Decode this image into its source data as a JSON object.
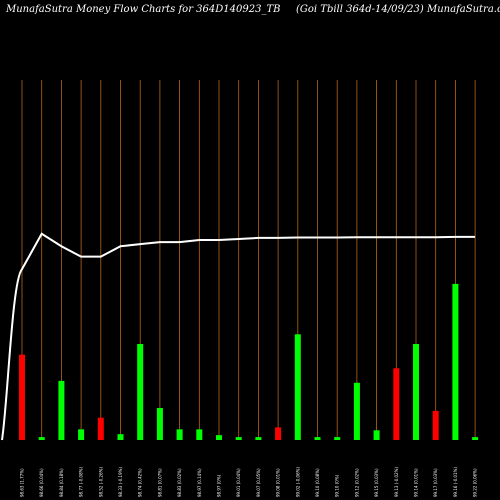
{
  "header": {
    "title_left": "MunafaSutra  Money Flow  Charts for 364D140923_TB",
    "title_right": "(Goi   Tbill 364d-14/09/23) MunafaSutra.com"
  },
  "colors": {
    "background": "#000000",
    "grid": "#b8661c",
    "line": "#ffffff",
    "up": "#00ff00",
    "down": "#ff0000"
  },
  "chart_data": {
    "type": "bar",
    "title": "MunafaSutra  Money Flow  Charts for 364D140923_TB",
    "categories": [
      "98.63 (1.77%)",
      "98.66 (0.04%)",
      "98.84 (0.18%)",
      "98.77 (-0.08%)",
      "98.52 (-0.26%)",
      "98.33 (-0.19%)",
      "98.74 (0.42%)",
      "98.81 (0.07%)",
      "98.83 (0.02%)",
      "98.97 (0.14%)",
      "98.97 (0%)",
      "99.01 (0.04%)",
      "99.07 (0.05%)",
      "99.08 (0.01%)",
      "99.02 (-0.06%)",
      "99.10 (0.08%)",
      "99.10 (0%)",
      "99.12 (0.02%)",
      "99.15 (0.03%)",
      "99.13 (-0.02%)",
      "99.14 (0.01%)",
      "99.17 (0.03%)",
      "99.16 (-0.01%)",
      "99.22 (0.06%)"
    ],
    "bar_values": [
      88,
      3,
      61,
      11,
      23,
      6,
      99,
      33,
      11,
      11,
      5,
      3,
      3,
      13,
      109,
      3,
      3,
      59,
      10,
      74,
      99,
      30,
      161,
      3
    ],
    "bar_colors": [
      "down",
      "up",
      "up",
      "up",
      "down",
      "up",
      "up",
      "up",
      "up",
      "up",
      "up",
      "up",
      "up",
      "down",
      "up",
      "up",
      "up",
      "up",
      "up",
      "down",
      "up",
      "down",
      "up",
      "up"
    ],
    "line_values": [
      18.2,
      19.9,
      19.3,
      18.8,
      18.8,
      19.3,
      19.4,
      19.5,
      19.5,
      19.6,
      19.6,
      19.65,
      19.7,
      19.7,
      19.72,
      19.72,
      19.72,
      19.73,
      19.73,
      19.73,
      19.73,
      19.73,
      19.75,
      19.75
    ],
    "bar_ylim": [
      0,
      165
    ],
    "line_ylim": [
      10,
      22
    ]
  }
}
